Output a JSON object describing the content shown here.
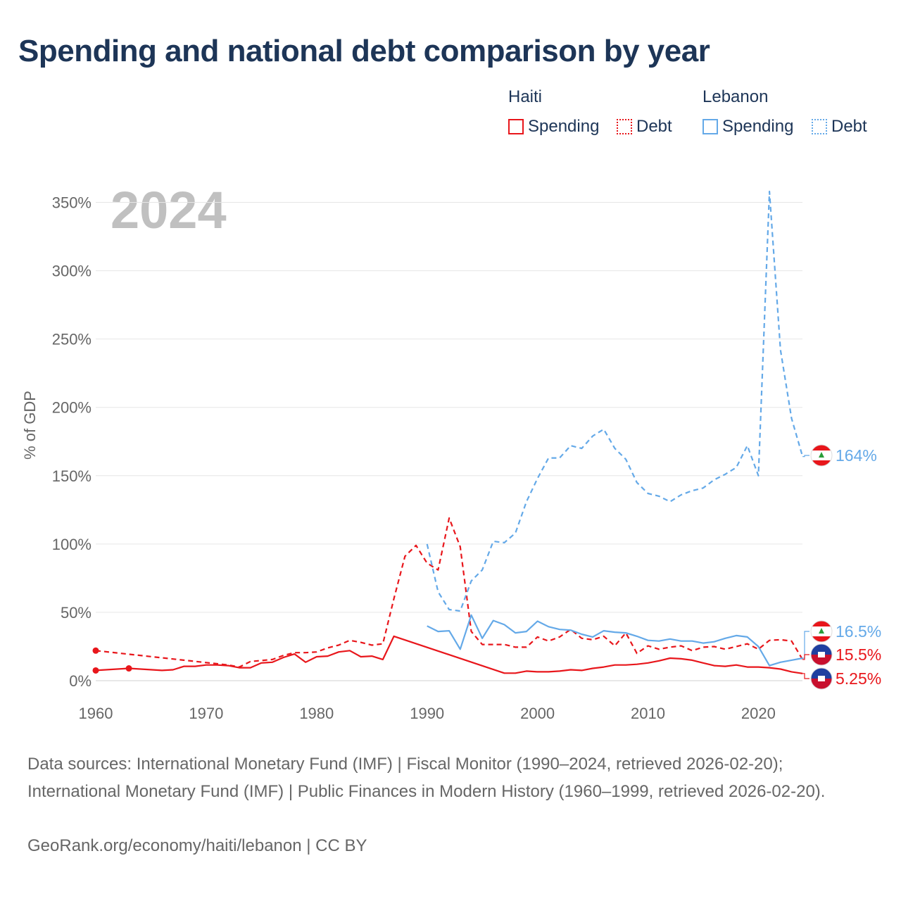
{
  "title": "Spending and national debt comparison by year",
  "legend": {
    "haiti": {
      "name": "Haiti",
      "spending": "Spending",
      "debt": "Debt"
    },
    "lebanon": {
      "name": "Lebanon",
      "spending": "Spending",
      "debt": "Debt"
    }
  },
  "colors": {
    "haiti": "#e8161b",
    "lebanon": "#64a9e8",
    "title": "#1d3557",
    "grid": "#e6e6e6",
    "axis_text": "#666666",
    "year_watermark": "#c0c0c0"
  },
  "footer": {
    "sources": "Data sources: International Monetary Fund (IMF) | Fiscal Monitor (1990–2024, retrieved 2026-02-20); International Monetary Fund (IMF) | Public Finances in Modern History (1960–1999, retrieved 2026-02-20).",
    "credit": "GeoRank.org/economy/haiti/lebanon | CC BY"
  },
  "chart_data": {
    "type": "line",
    "title": "Spending and national debt comparison by year",
    "year_label": "2024",
    "ylabel": "% of GDP",
    "xlabel": "",
    "xlim": [
      1960,
      2025
    ],
    "ylim": [
      0,
      360
    ],
    "xticks": [
      1960,
      1970,
      1980,
      1990,
      2000,
      2010,
      2020
    ],
    "yticks": [
      0,
      50,
      100,
      150,
      200,
      250,
      300,
      350
    ],
    "ytick_labels": [
      "0%",
      "50%",
      "100%",
      "150%",
      "200%",
      "250%",
      "300%",
      "350%"
    ],
    "series": [
      {
        "key": "haiti_spending",
        "name": "Haiti Spending",
        "country": "haiti",
        "style": "solid",
        "x": [
          1960,
          1963,
          1966,
          1967,
          1968,
          1969,
          1970,
          1971,
          1972,
          1973,
          1974,
          1975,
          1976,
          1977,
          1978,
          1979,
          1980,
          1981,
          1982,
          1983,
          1984,
          1985,
          1986,
          1987,
          1997,
          1998,
          1999,
          2000,
          2001,
          2002,
          2003,
          2004,
          2005,
          2006,
          2007,
          2008,
          2009,
          2010,
          2011,
          2012,
          2013,
          2014,
          2015,
          2016,
          2017,
          2018,
          2019,
          2020,
          2021,
          2022,
          2023,
          2024
        ],
        "y": [
          7.5,
          9,
          7.5,
          8,
          10.5,
          10.5,
          11.5,
          11.5,
          11,
          9.5,
          9.5,
          13,
          13.5,
          17,
          19.5,
          13.5,
          17.5,
          18,
          21,
          22,
          17.5,
          18,
          15.5,
          32.5,
          5.5,
          5.5,
          7,
          6.5,
          6.5,
          7,
          8,
          7.5,
          9,
          10,
          11.5,
          11.5,
          12,
          13,
          14.5,
          16.5,
          16,
          15,
          13,
          11,
          10.5,
          11.5,
          10,
          10,
          9.5,
          8.5,
          6.5,
          5.25
        ]
      },
      {
        "key": "haiti_debt",
        "name": "Haiti Debt",
        "country": "haiti",
        "style": "dashed",
        "x": [
          1960,
          1972,
          1973,
          1974,
          1976,
          1977,
          1978,
          1979,
          1980,
          1981,
          1982,
          1983,
          1984,
          1985,
          1986,
          1987,
          1988,
          1989,
          1990,
          1991,
          1992,
          1993,
          1994,
          1995,
          1996,
          1997,
          1998,
          1999,
          2000,
          2001,
          2002,
          2003,
          2004,
          2005,
          2006,
          2007,
          2008,
          2009,
          2010,
          2011,
          2012,
          2013,
          2014,
          2015,
          2016,
          2017,
          2018,
          2019,
          2020,
          2021,
          2022,
          2023,
          2024
        ],
        "y": [
          22,
          11.5,
          10,
          14,
          15.5,
          18.5,
          20.5,
          20.5,
          21,
          24,
          26,
          29.5,
          28,
          26,
          27,
          60,
          91,
          99,
          86,
          81,
          119,
          98,
          36,
          26.5,
          26.5,
          26.5,
          24.5,
          24.5,
          32,
          29,
          32,
          37.5,
          31,
          30,
          32.5,
          25.5,
          35,
          20,
          25.5,
          23,
          24.5,
          25.5,
          22,
          24.5,
          25,
          23,
          25,
          27,
          23,
          29.5,
          30,
          29,
          15.5
        ]
      },
      {
        "key": "lebanon_spending",
        "name": "Lebanon Spending",
        "country": "lebanon",
        "style": "solid",
        "x": [
          1990,
          1991,
          1992,
          1993,
          1994,
          1995,
          1996,
          1997,
          1998,
          1999,
          2000,
          2001,
          2002,
          2003,
          2004,
          2005,
          2006,
          2007,
          2008,
          2009,
          2010,
          2011,
          2012,
          2013,
          2014,
          2015,
          2016,
          2017,
          2018,
          2019,
          2020,
          2021,
          2022,
          2023,
          2024
        ],
        "y": [
          40,
          36,
          36.5,
          23,
          48,
          31,
          44,
          41,
          35,
          36,
          43.5,
          39.5,
          37.5,
          37,
          34,
          32,
          36.5,
          35.5,
          35,
          32.5,
          29.5,
          29,
          30.5,
          29,
          29,
          27.5,
          28.5,
          31,
          33,
          32,
          25,
          11,
          13.5,
          15,
          16.5
        ]
      },
      {
        "key": "lebanon_debt",
        "name": "Lebanon Debt",
        "country": "lebanon",
        "style": "dashed",
        "x": [
          1990,
          1991,
          1992,
          1993,
          1994,
          1995,
          1996,
          1997,
          1998,
          1999,
          2000,
          2001,
          2002,
          2003,
          2004,
          2005,
          2006,
          2007,
          2008,
          2009,
          2010,
          2011,
          2012,
          2013,
          2014,
          2015,
          2016,
          2017,
          2018,
          2019,
          2020,
          2021,
          2022,
          2023,
          2024
        ],
        "y": [
          100,
          65,
          52,
          51,
          73,
          81,
          102,
          101,
          108,
          131,
          148,
          163,
          163,
          172,
          170,
          179,
          184,
          170,
          162,
          145,
          137,
          135,
          131,
          136,
          139,
          141,
          147,
          151,
          156,
          172,
          150,
          358,
          242,
          192,
          164
        ]
      }
    ],
    "end_labels": [
      {
        "series": "lebanon_debt",
        "country": "lebanon",
        "text": "164%"
      },
      {
        "series": "lebanon_spending",
        "country": "lebanon",
        "text": "16.5%"
      },
      {
        "series": "haiti_debt",
        "country": "haiti",
        "text": "15.5%"
      },
      {
        "series": "haiti_spending",
        "country": "haiti",
        "text": "5.25%"
      }
    ],
    "flag_icons": {
      "haiti": "haiti-flag-icon",
      "lebanon": "lebanon-flag-icon"
    }
  }
}
